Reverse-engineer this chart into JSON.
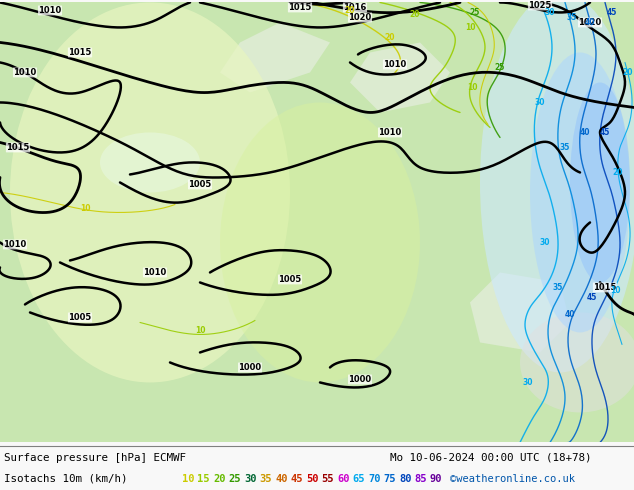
{
  "title_line1": "Surface pressure [hPa] ECMWF",
  "title_line2": "Mo 10-06-2024 00:00 UTC (18+78)",
  "legend_label": "Isotachs 10m (km/h)",
  "copyright": "©weatheronline.co.uk",
  "legend_values": [
    10,
    15,
    20,
    25,
    30,
    35,
    40,
    45,
    50,
    55,
    60,
    65,
    70,
    75,
    80,
    85,
    90
  ],
  "legend_colors": [
    "#cccc00",
    "#99cc00",
    "#66bb00",
    "#339900",
    "#006600",
    "#cc9900",
    "#cc6600",
    "#cc3300",
    "#cc0000",
    "#990000",
    "#cc00cc",
    "#00aaee",
    "#0088dd",
    "#0066cc",
    "#0044bb",
    "#cc44ff",
    "#9900cc"
  ],
  "bottom_bg": "#f0f0f0",
  "map_light_green": "#c8e6b0",
  "map_mid_green": "#a8d890",
  "map_white": "#f5f5f5",
  "map_light_blue": "#d0e8ff",
  "fig_width": 6.34,
  "fig_height": 4.9,
  "dpi": 100
}
